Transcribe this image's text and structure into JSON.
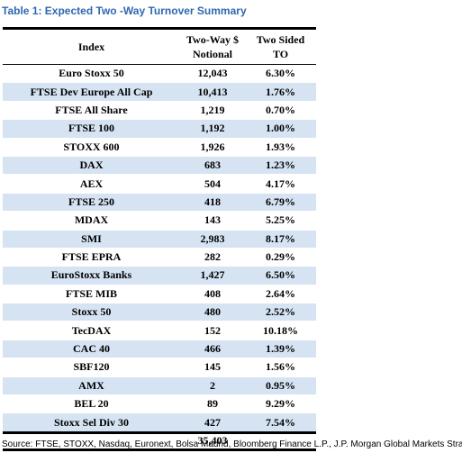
{
  "title": "Table 1: Expected Two -Way Turnover Summary",
  "table": {
    "headers": [
      [
        "Index"
      ],
      [
        "Two-Way $",
        "Notional"
      ],
      [
        "Two Sided",
        "TO"
      ]
    ],
    "rows": [
      [
        "Euro Stoxx 50",
        "12,043",
        "6.30%"
      ],
      [
        "FTSE Dev Europe All Cap",
        "10,413",
        "1.76%"
      ],
      [
        "FTSE All Share",
        "1,219",
        "0.70%"
      ],
      [
        "FTSE 100",
        "1,192",
        "1.00%"
      ],
      [
        "STOXX 600",
        "1,926",
        "1.93%"
      ],
      [
        "DAX",
        "683",
        "1.23%"
      ],
      [
        "AEX",
        "504",
        "4.17%"
      ],
      [
        "FTSE 250",
        "418",
        "6.79%"
      ],
      [
        "MDAX",
        "143",
        "5.25%"
      ],
      [
        "SMI",
        "2,983",
        "8.17%"
      ],
      [
        "FTSE EPRA",
        "282",
        "0.29%"
      ],
      [
        "EuroStoxx Banks",
        "1,427",
        "6.50%"
      ],
      [
        "FTSE MIB",
        "408",
        "2.64%"
      ],
      [
        "Stoxx 50",
        "480",
        "2.52%"
      ],
      [
        "TecDAX",
        "152",
        "10.18%"
      ],
      [
        "CAC 40",
        "466",
        "1.39%"
      ],
      [
        "SBF120",
        "145",
        "1.56%"
      ],
      [
        "AMX",
        "2",
        "0.95%"
      ],
      [
        "BEL 20",
        "89",
        "9.29%"
      ],
      [
        "Stoxx Sel Div 30",
        "427",
        "7.54%"
      ]
    ],
    "total_notional": "35,403"
  },
  "source": "Source: FTSE, STOXX, Nasdaq, Euronext, Bolsa Madrid, Bloomberg Finance L.P., J.P. Morgan Global Markets Strategy"
}
